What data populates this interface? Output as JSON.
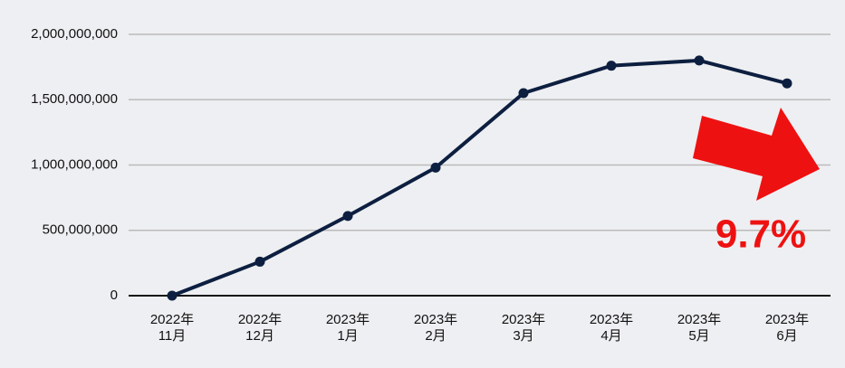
{
  "chart_data": {
    "type": "line",
    "categories": [
      [
        "2022年",
        "11月"
      ],
      [
        "2022年",
        "12月"
      ],
      [
        "2023年",
        "1月"
      ],
      [
        "2023年",
        "2月"
      ],
      [
        "2023年",
        "3月"
      ],
      [
        "2023年",
        "4月"
      ],
      [
        "2023年",
        "5月"
      ],
      [
        "2023年",
        "6月"
      ]
    ],
    "values": [
      0,
      260000000,
      610000000,
      980000000,
      1550000000,
      1760000000,
      1800000000,
      1625000000
    ],
    "color": "#0d1f40",
    "ylim": [
      0,
      2000000000
    ],
    "yticks": [
      0,
      {
        "value": 500000000,
        "label": "500,000,000"
      },
      {
        "value": 1000000000,
        "label": "1,000,000,000"
      },
      {
        "value": 1500000000,
        "label": "1,500,000,000"
      },
      {
        "value": 2000000000,
        "label": "2,000,000,000"
      }
    ],
    "grid": true,
    "annotation": "9.7%"
  }
}
